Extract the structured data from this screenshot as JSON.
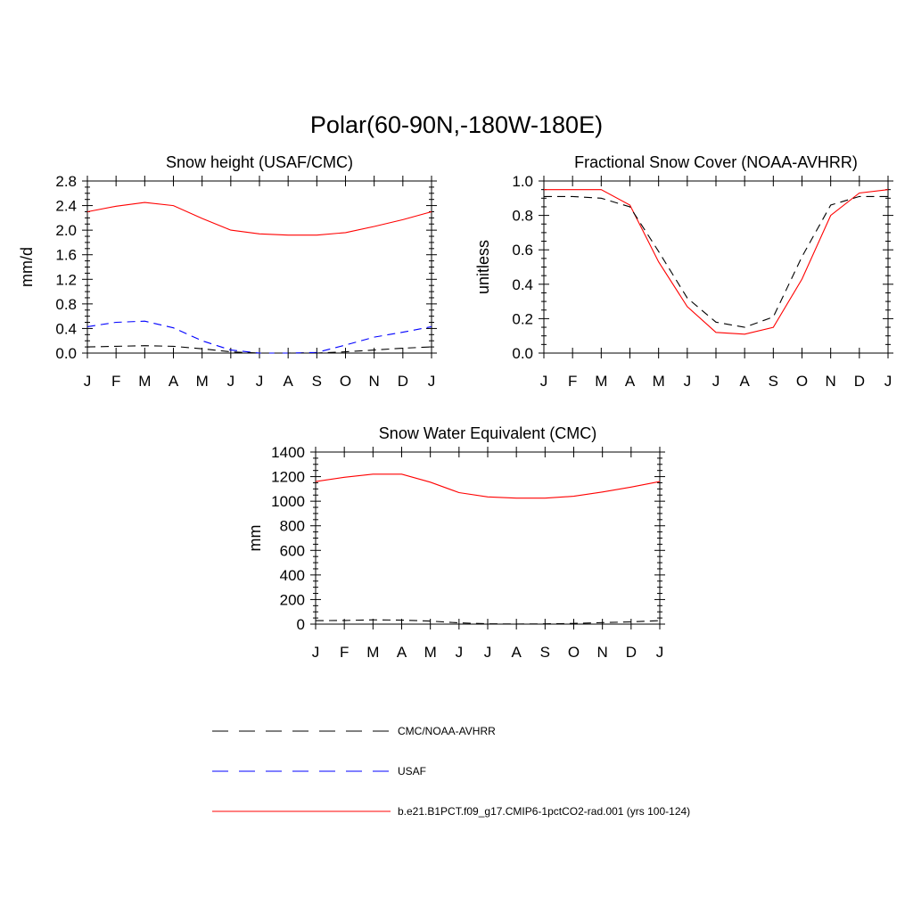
{
  "figure": {
    "title": "Polar(60-90N,-180W-180E)"
  },
  "colors": {
    "obs": "#000000",
    "usaf": "#0000ff",
    "model": "#ff0000"
  },
  "legend": {
    "placement": "bottom",
    "items": [
      {
        "label": "CMC/NOAA-AVHRR",
        "style": "dashed",
        "color": "#000000"
      },
      {
        "label": "USAF",
        "style": "dashed",
        "color": "#0000ff"
      },
      {
        "label": "b.e21.B1PCT.f09_g17.CMIP6-1pctCO2-rad.001 (yrs 100-124)",
        "style": "solid",
        "color": "#ff0000"
      }
    ]
  },
  "chart_data": [
    {
      "type": "line",
      "title": "Snow height (USAF/CMC)",
      "ylabel": "mm/d",
      "xlabel": "",
      "categories": [
        "J",
        "F",
        "M",
        "A",
        "M",
        "J",
        "J",
        "A",
        "S",
        "O",
        "N",
        "D",
        "J"
      ],
      "ylim": [
        0,
        2.8
      ],
      "yticks": [
        "0.0",
        "0.4",
        "0.8",
        "1.2",
        "1.6",
        "2.0",
        "2.4",
        "2.8"
      ],
      "series": [
        {
          "name": "b.e21.B1PCT.f09_g17.CMIP6-1pctCO2-rad.001 (yrs 100-124)",
          "color": "#ff0000",
          "style": "solid",
          "values": [
            2.3,
            2.39,
            2.45,
            2.4,
            2.19,
            2.0,
            1.94,
            1.92,
            1.92,
            1.96,
            2.06,
            2.17,
            2.3
          ]
        },
        {
          "name": "USAF",
          "color": "#0000ff",
          "style": "dashed",
          "values": [
            0.43,
            0.5,
            0.52,
            0.41,
            0.2,
            0.05,
            0.0,
            0.0,
            0.01,
            0.13,
            0.26,
            0.34,
            0.43
          ]
        },
        {
          "name": "CMC/NOAA-AVHRR",
          "color": "#000000",
          "style": "dashed",
          "values": [
            0.1,
            0.11,
            0.12,
            0.11,
            0.07,
            0.02,
            0.0,
            0.0,
            0.0,
            0.02,
            0.05,
            0.08,
            0.1
          ]
        }
      ]
    },
    {
      "type": "line",
      "title": "Fractional Snow Cover (NOAA-AVHRR)",
      "ylabel": "unitless",
      "xlabel": "",
      "categories": [
        "J",
        "F",
        "M",
        "A",
        "M",
        "J",
        "J",
        "A",
        "S",
        "O",
        "N",
        "D",
        "J"
      ],
      "ylim": [
        0,
        1.0
      ],
      "yticks": [
        "0.0",
        "0.2",
        "0.4",
        "0.6",
        "0.8",
        "1.0"
      ],
      "series": [
        {
          "name": "b.e21.B1PCT.f09_g17.CMIP6-1pctCO2-rad.001 (yrs 100-124)",
          "color": "#ff0000",
          "style": "solid",
          "values": [
            0.95,
            0.95,
            0.95,
            0.86,
            0.53,
            0.27,
            0.12,
            0.11,
            0.15,
            0.43,
            0.8,
            0.93,
            0.95
          ]
        },
        {
          "name": "CMC/NOAA-AVHRR",
          "color": "#000000",
          "style": "dashed",
          "values": [
            0.91,
            0.91,
            0.9,
            0.85,
            0.59,
            0.32,
            0.18,
            0.15,
            0.21,
            0.56,
            0.86,
            0.91,
            0.91
          ]
        }
      ]
    },
    {
      "type": "line",
      "title": "Snow Water Equivalent (CMC)",
      "ylabel": "mm",
      "xlabel": "",
      "categories": [
        "J",
        "F",
        "M",
        "A",
        "M",
        "J",
        "J",
        "A",
        "S",
        "O",
        "N",
        "D",
        "J"
      ],
      "ylim": [
        0,
        1400
      ],
      "yticks": [
        "0",
        "200",
        "400",
        "600",
        "800",
        "1000",
        "1200",
        "1400"
      ],
      "series": [
        {
          "name": "b.e21.B1PCT.f09_g17.CMIP6-1pctCO2-rad.001 (yrs 100-124)",
          "color": "#ff0000",
          "style": "solid",
          "values": [
            1160,
            1195,
            1220,
            1220,
            1155,
            1070,
            1035,
            1025,
            1025,
            1040,
            1075,
            1115,
            1160
          ]
        },
        {
          "name": "CMC/NOAA-AVHRR",
          "color": "#000000",
          "style": "dashed",
          "values": [
            28,
            30,
            35,
            33,
            25,
            10,
            3,
            1,
            2,
            6,
            12,
            18,
            28
          ]
        }
      ]
    }
  ]
}
